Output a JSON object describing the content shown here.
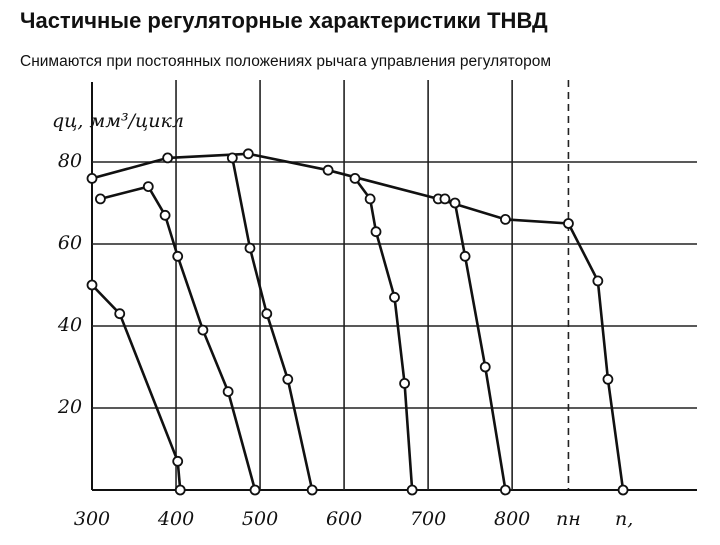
{
  "chart_data": {
    "type": "line",
    "title": "Частичные регуляторные характеристики ТНВД",
    "subtitle": "Снимаются при постоянных положениях рычага управления регулятором",
    "y_label": "qц, мм³/цикл",
    "x_label": "n,",
    "xlim": [
      300,
      1020
    ],
    "ylim": [
      0,
      100
    ],
    "xticks": [
      300,
      400,
      500,
      600,
      700,
      800,
      {
        "value": 867,
        "label": "nн"
      }
    ],
    "yticks": [
      20,
      40,
      60,
      80
    ],
    "grid": true,
    "series": [
      {
        "color": "#111111",
        "x": [
          300,
          390,
          486,
          581,
          712,
          792,
          867,
          902,
          914,
          932
        ],
        "values": [
          76,
          81,
          82,
          78,
          71,
          66,
          65,
          51,
          27,
          0
        ]
      },
      {
        "color": "#111111",
        "x": [
          310,
          367,
          387,
          402,
          432,
          462,
          494
        ],
        "values": [
          71,
          74,
          67,
          57,
          39,
          24,
          0
        ]
      },
      {
        "color": "#111111",
        "x": [
          467,
          488,
          508,
          533,
          562
        ],
        "values": [
          81,
          59,
          43,
          27,
          0
        ]
      },
      {
        "color": "#111111",
        "x": [
          613,
          631,
          638,
          660,
          672,
          681
        ],
        "values": [
          76,
          71,
          63,
          47,
          26,
          0
        ]
      },
      {
        "color": "#111111",
        "x": [
          720,
          732,
          744,
          768,
          792
        ],
        "values": [
          71,
          70,
          57,
          30,
          0
        ]
      },
      {
        "color": "#111111",
        "x": [
          300,
          333,
          402,
          405
        ],
        "values": [
          50,
          43,
          7,
          0
        ]
      }
    ]
  }
}
